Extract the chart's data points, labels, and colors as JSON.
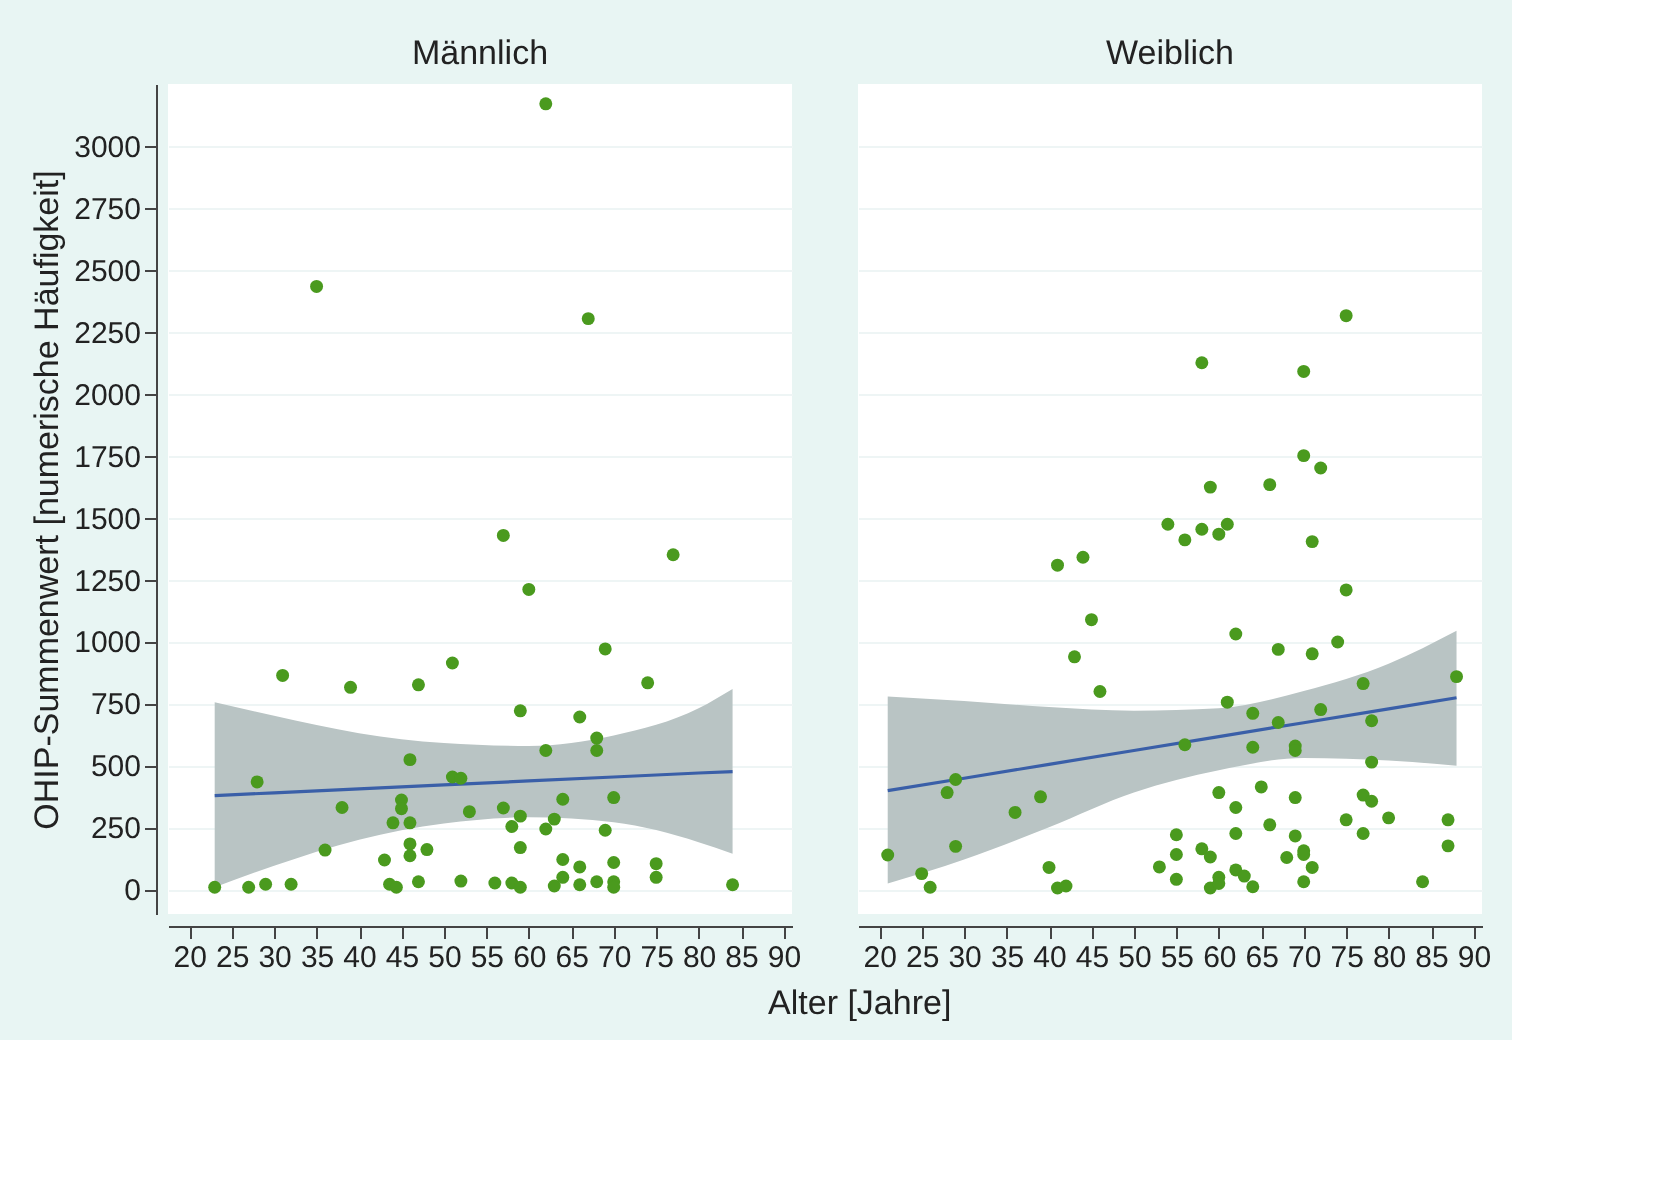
{
  "chart_data": [
    {
      "type": "scatter",
      "title": "Männlich",
      "xlabel": "Alter [Jahre]",
      "ylabel": "OHIP-Summenwert [numerische Häufigkeit]",
      "xlim": [
        17.5,
        91
      ],
      "ylim": [
        -100,
        3250
      ],
      "xticks": [
        20,
        25,
        30,
        35,
        40,
        45,
        50,
        55,
        60,
        65,
        70,
        75,
        80,
        85,
        90
      ],
      "yticks": [
        0,
        250,
        500,
        750,
        1000,
        1250,
        1500,
        1750,
        2000,
        2250,
        2500,
        2750,
        3000
      ],
      "grid": "y",
      "marker": "circle",
      "series": [
        {
          "color": "#4a9a1e",
          "x": [
            23,
            27,
            29,
            32,
            28,
            31,
            39,
            38,
            36,
            43,
            43.6,
            44.4,
            44,
            45,
            45,
            46,
            46,
            46,
            46,
            47,
            47,
            48,
            51,
            51,
            52,
            52,
            53,
            56,
            57,
            58,
            58,
            59,
            59,
            59,
            59,
            62,
            62,
            63,
            63,
            64,
            64,
            64,
            66,
            66,
            66,
            68,
            68,
            68,
            69,
            69,
            70,
            70,
            70,
            70,
            74,
            75,
            75,
            84,
            62,
            35,
            67,
            57,
            60,
            77
          ],
          "values": [
            8,
            8,
            20,
            20,
            433,
            863,
            815,
            330,
            158,
            118,
            20,
            8,
            268,
            360,
            325,
            523,
            268,
            183,
            135,
            825,
            30,
            160,
            913,
            453,
            448,
            33,
            313,
            25,
            328,
            253,
            25,
            720,
            295,
            168,
            8,
            560,
            243,
            283,
            13,
            363,
            120,
            48,
            695,
            90,
            18,
            610,
            560,
            30,
            970,
            238,
            370,
            108,
            30,
            8,
            833,
            103,
            48,
            18,
            3170,
            2433,
            2303,
            1428,
            1210,
            1350
          ]
        },
        {
          "type": "line",
          "color": "#3a5fa8",
          "line_style": "solid",
          "x": [
            23,
            30,
            40,
            50,
            60,
            70,
            80,
            84
          ],
          "values": [
            378,
            389,
            405,
            421,
            437,
            453,
            469,
            475
          ],
          "lower": [
            8,
            95,
            200,
            265,
            290,
            270,
            190,
            143
          ],
          "upper": [
            755,
            700,
            630,
            590,
            578,
            620,
            730,
            808
          ],
          "marker": "none"
        }
      ]
    },
    {
      "type": "scatter",
      "title": "Weiblich",
      "xlim": [
        17.5,
        91
      ],
      "ylim": [
        -100,
        3250
      ],
      "xticks": [
        20,
        25,
        30,
        35,
        40,
        45,
        50,
        55,
        60,
        65,
        70,
        75,
        80,
        85,
        90
      ],
      "yticks": [
        0,
        250,
        500,
        750,
        1000,
        1250,
        1500,
        1750,
        2000,
        2250,
        2500,
        2750,
        3000
      ],
      "tick_labels": "x",
      "grid": "y",
      "marker": "circle",
      "series": [
        {
          "color": "#4a9a1e",
          "x": [
            21,
            25,
            26,
            28,
            29,
            29,
            36,
            39,
            40,
            41,
            42,
            43,
            45,
            46,
            53,
            55,
            55,
            55,
            56,
            58,
            59,
            59,
            60,
            60,
            60,
            61,
            62,
            62,
            62,
            62,
            63,
            64,
            64,
            64,
            65,
            66,
            67,
            67,
            68,
            69,
            69,
            69,
            69,
            70,
            70,
            70,
            71,
            71,
            72,
            74,
            75,
            77,
            77,
            77,
            78,
            78,
            78,
            80,
            84,
            87,
            87,
            88,
            75,
            58,
            70,
            70,
            72,
            59,
            66,
            54,
            56,
            58,
            60,
            61,
            71,
            41,
            44,
            75
          ],
          "values": [
            138,
            63,
            8,
            390,
            443,
            173,
            310,
            373,
            88,
            5,
            13,
            938,
            1088,
            798,
            90,
            220,
            140,
            40,
            583,
            163,
            130,
            5,
            390,
            48,
            23,
            755,
            1030,
            330,
            225,
            78,
            53,
            710,
            573,
            10,
            413,
            260,
            968,
            673,
            128,
            578,
            560,
            370,
            215,
            155,
            140,
            30,
            950,
            88,
            725,
            998,
            280,
            830,
            380,
            225,
            680,
            513,
            355,
            288,
            30,
            280,
            175,
            858,
            2315,
            2125,
            2090,
            1750,
            1700,
            1623,
            1633,
            1473,
            1410,
            1453,
            1433,
            1473,
            1403,
            1308,
            1340,
            1208
          ]
        },
        {
          "type": "line",
          "color": "#3a5fa8",
          "line_style": "solid",
          "x": [
            21,
            30,
            40,
            50,
            60,
            70,
            80,
            88
          ],
          "values": [
            398,
            448,
            504,
            560,
            616,
            672,
            728,
            773
          ],
          "lower": [
            23,
            120,
            250,
            390,
            480,
            530,
            520,
            498
          ],
          "upper": [
            778,
            760,
            735,
            720,
            730,
            800,
            910,
            1043
          ],
          "marker": "none"
        }
      ]
    }
  ]
}
